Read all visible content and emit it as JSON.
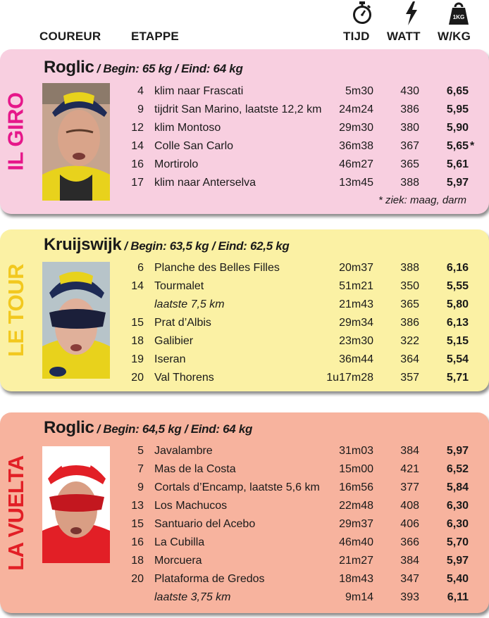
{
  "header": {
    "col_rider": "COUREUR",
    "col_stage": "ETAPPE",
    "col_time": "TIJD",
    "col_watt": "WATT",
    "col_wkg": "W/KG",
    "time_icon": "stopwatch-icon",
    "watt_icon": "lightning-icon",
    "wkg_icon": "weight-icon",
    "weight_label": "1KG"
  },
  "giro": {
    "label": "IL GIRO",
    "rider": "Roglic",
    "weights": "/ Begin: 65 kg / Eind: 64 kg",
    "bg": "#f8cfe0",
    "accent": "#e6178a",
    "note": "* ziek: maag, darm",
    "rows": [
      {
        "stage": "4",
        "climb": "klim naar Frascati",
        "time": "5m30",
        "watt": "430",
        "wkg": "6,65",
        "mark": ""
      },
      {
        "stage": "9",
        "climb": "tijdrit San Marino, laatste 12,2 km",
        "time": "24m24",
        "watt": "386",
        "wkg": "5,95",
        "mark": ""
      },
      {
        "stage": "12",
        "climb": "klim Montoso",
        "time": "29m30",
        "watt": "380",
        "wkg": "5,90",
        "mark": ""
      },
      {
        "stage": "14",
        "climb": "Colle San Carlo",
        "time": "36m38",
        "watt": "367",
        "wkg": "5,65",
        "mark": "*"
      },
      {
        "stage": "16",
        "climb": "Mortirolo",
        "time": "46m27",
        "watt": "365",
        "wkg": "5,61",
        "mark": ""
      },
      {
        "stage": "17",
        "climb": "klim naar Anterselva",
        "time": "13m45",
        "watt": "388",
        "wkg": "5,97",
        "mark": ""
      }
    ]
  },
  "tour": {
    "label": "LE TOUR",
    "rider": "Kruijswijk",
    "weights": "/ Begin: 63,5 kg / Eind: 62,5 kg",
    "bg": "#fbf1a4",
    "accent": "#f2c81e",
    "rows": [
      {
        "stage": "6",
        "climb": "Planche des Belles Filles",
        "time": "20m37",
        "watt": "388",
        "wkg": "6,16",
        "italic": false
      },
      {
        "stage": "14",
        "climb": "Tourmalet",
        "time": "51m21",
        "watt": "350",
        "wkg": "5,55",
        "italic": false
      },
      {
        "stage": "",
        "climb": "laatste 7,5 km",
        "time": "21m43",
        "watt": "365",
        "wkg": "5,80",
        "italic": true
      },
      {
        "stage": "15",
        "climb": "Prat d’Albis",
        "time": "29m34",
        "watt": "386",
        "wkg": "6,13",
        "italic": false
      },
      {
        "stage": "18",
        "climb": "Galibier",
        "time": "23m30",
        "watt": "322",
        "wkg": "5,15",
        "italic": false
      },
      {
        "stage": "19",
        "climb": "Iseran",
        "time": "36m44",
        "watt": "364",
        "wkg": "5,54",
        "italic": false
      },
      {
        "stage": "20",
        "climb": "Val Thorens",
        "time": "1u17m28",
        "watt": "357",
        "wkg": "5,71",
        "italic": false
      }
    ]
  },
  "vuelta": {
    "label": "LA VUELTA",
    "rider": "Roglic",
    "weights": "/ Begin: 64,5 kg / Eind: 64 kg",
    "bg": "#f7b39e",
    "accent": "#e21f26",
    "rows": [
      {
        "stage": "5",
        "climb": "Javalambre",
        "time": "31m03",
        "watt": "384",
        "wkg": "5,97",
        "italic": false
      },
      {
        "stage": "7",
        "climb": "Mas de la Costa",
        "time": "15m00",
        "watt": "421",
        "wkg": "6,52",
        "italic": false
      },
      {
        "stage": "9",
        "climb": "Cortals d’Encamp, laatste 5,6 km",
        "time": "16m56",
        "watt": "377",
        "wkg": "5,84",
        "italic": false
      },
      {
        "stage": "13",
        "climb": "Los Machucos",
        "time": "22m48",
        "watt": "408",
        "wkg": "6,30",
        "italic": false
      },
      {
        "stage": "15",
        "climb": "Santuario del Acebo",
        "time": "29m37",
        "watt": "406",
        "wkg": "6,30",
        "italic": false
      },
      {
        "stage": "16",
        "climb": "La Cubilla",
        "time": "46m40",
        "watt": "366",
        "wkg": "5,70",
        "italic": false
      },
      {
        "stage": "18",
        "climb": "Morcuera",
        "time": "21m27",
        "watt": "384",
        "wkg": "5,97",
        "italic": false
      },
      {
        "stage": "20",
        "climb": "Plataforma de Gredos",
        "time": "18m43",
        "watt": "347",
        "wkg": "5,40",
        "italic": false
      },
      {
        "stage": "",
        "climb": "laatste 3,75 km",
        "time": "9m14",
        "watt": "393",
        "wkg": "6,11",
        "italic": true
      }
    ]
  }
}
